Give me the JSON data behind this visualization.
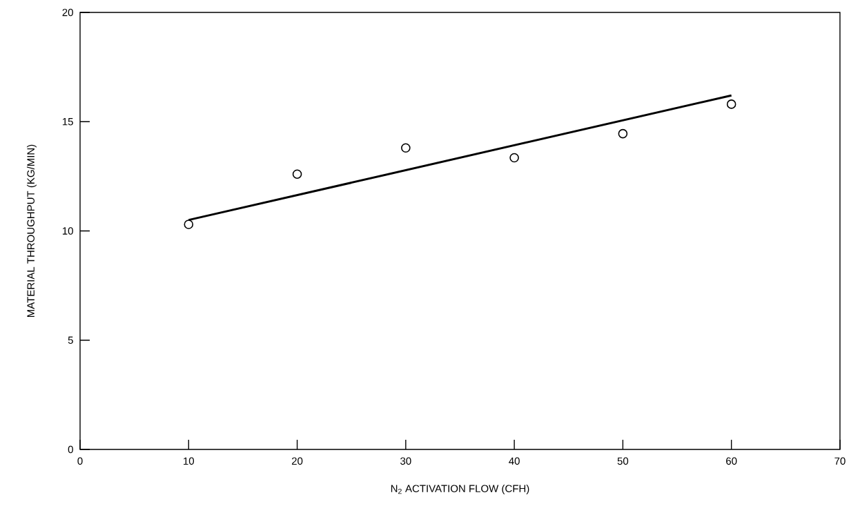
{
  "chart_data": {
    "type": "scatter",
    "xlabel": "N$_{2}$ ACTIVATION FLOW (CFH)",
    "ylabel": "MATERIAL THROUGHPUT (KG/MIN)",
    "series": [
      {
        "color": "#000000",
        "marker": "circle",
        "x": [
          10,
          20,
          30,
          40,
          50,
          60
        ],
        "values": [
          10.3,
          12.6,
          13.8,
          13.35,
          14.45,
          15.8
        ]
      },
      {
        "type": "line",
        "color": "#000000",
        "marker": "none",
        "line_style": "solid",
        "x": [
          10,
          60
        ],
        "values": [
          10.5,
          16.2
        ]
      }
    ],
    "xlim": [
      0,
      70
    ],
    "xticks": [
      0,
      10,
      20,
      30,
      40,
      50,
      60,
      70
    ],
    "ylim": [
      0,
      20
    ],
    "yticks": [
      0,
      5,
      10,
      15,
      20
    ],
    "grid": false
  }
}
